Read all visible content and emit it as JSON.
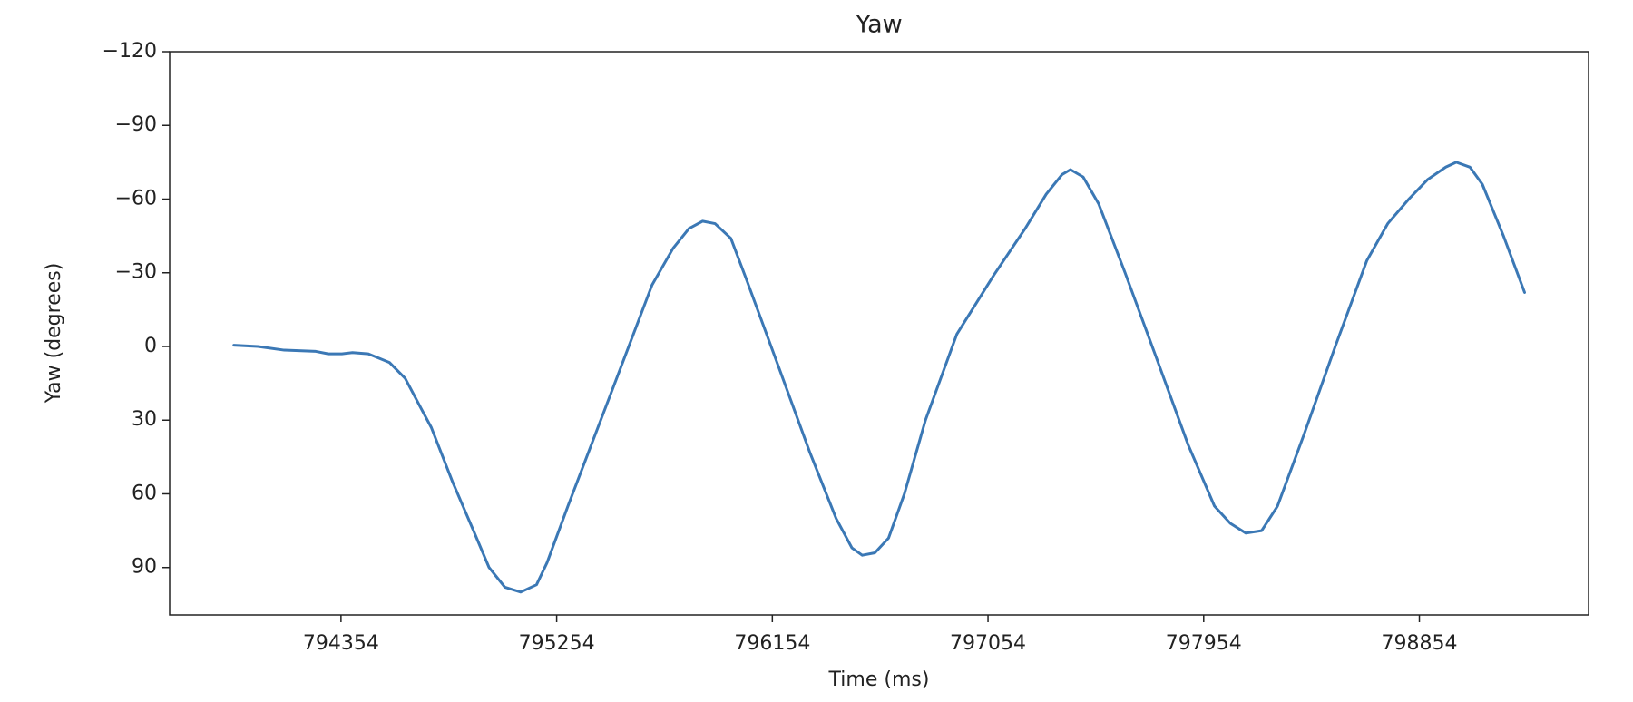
{
  "chart_data": {
    "type": "line",
    "title": "Yaw",
    "x_label": "Time (ms)",
    "y_label": "Yaw (degrees)",
    "xlim": [
      793639,
      799560
    ],
    "xticks": [
      794354,
      795254,
      796154,
      797054,
      797954,
      798854
    ],
    "ylim": [
      109.3,
      -120
    ],
    "yticks": [
      {
        "value": -120,
        "label": "−120"
      },
      {
        "value": -90,
        "label": "−90"
      },
      {
        "value": -60,
        "label": "−60"
      },
      {
        "value": -30,
        "label": "−30"
      },
      0,
      30,
      60,
      90
    ],
    "grid": false,
    "series": [
      {
        "color": "#3b78b5",
        "x": [
          793907,
          794007,
          794117,
          794249,
          794301,
          794358,
          794402,
          794468,
          794556,
          794622,
          794687,
          794731,
          794819,
          794907,
          794972,
          795038,
          795104,
          795170,
          795214,
          795301,
          795477,
          795652,
          795740,
          795806,
          795863,
          795915,
          795981,
          796047,
          796179,
          796310,
          796420,
          796486,
          796529,
          796582,
          796639,
          796705,
          796793,
          796924,
          797078,
          797209,
          797297,
          797363,
          797398,
          797451,
          797516,
          797626,
          797758,
          797889,
          797999,
          798065,
          798130,
          798196,
          798262,
          798372,
          798503,
          798635,
          798722,
          798810,
          798889,
          798964,
          799008,
          799065,
          799117,
          799205,
          799293
        ],
        "values": [
          -0.5,
          0,
          1.5,
          2,
          3,
          3,
          2.5,
          3,
          6.5,
          13,
          25,
          33,
          55,
          75,
          90,
          98,
          100,
          97,
          88,
          65,
          20,
          -25,
          -40,
          -48,
          -51,
          -50,
          -44,
          -27,
          8,
          43,
          70,
          82,
          85,
          84,
          78,
          60,
          30,
          -5,
          -29,
          -48,
          -62,
          -70,
          -72,
          -69,
          -58,
          -30,
          5,
          40,
          65,
          72,
          76,
          75,
          65,
          36,
          0,
          -35,
          -50,
          -60,
          -68,
          -73,
          -75,
          -73,
          -66,
          -45,
          -22
        ]
      }
    ]
  }
}
